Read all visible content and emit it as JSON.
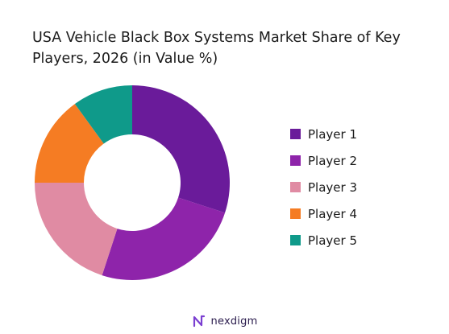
{
  "chart_data": {
    "type": "pie",
    "variant": "donut",
    "title_line1": "USA Vehicle Black Box Systems Market Share of Key",
    "title_line2": "Players, 2026 (in Value %)",
    "categories": [
      "Player 1",
      "Player 2",
      "Player 3",
      "Player 4",
      "Player 5"
    ],
    "values": [
      30,
      25,
      20,
      15,
      10
    ],
    "colors": [
      "#6a1b9a",
      "#8e24aa",
      "#e08ba3",
      "#f57c23",
      "#0f9a8a"
    ],
    "legend_position": "right"
  },
  "brand": {
    "name": "nexdigm",
    "color": "#2a1b4d",
    "icon": "nexdigm-logo-icon"
  }
}
